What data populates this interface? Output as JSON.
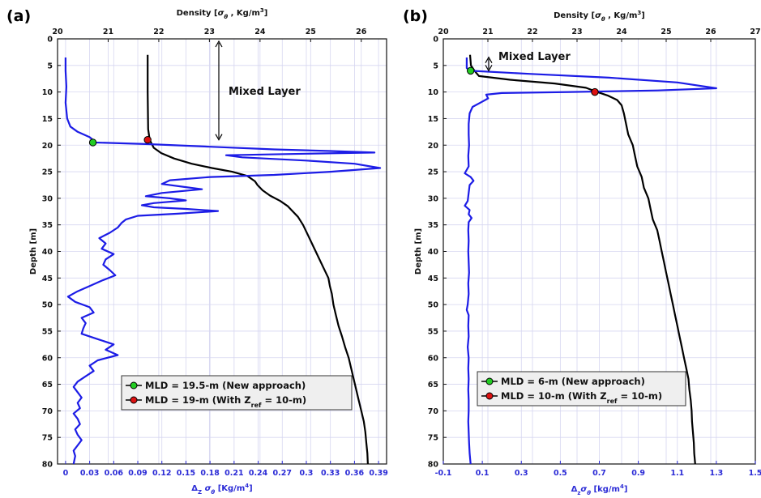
{
  "chart_data": [
    {
      "type": "line",
      "panel_label": "(a)",
      "title_top": "Density [",
      "title_top_sigma": "σ",
      "title_top_theta": "θ",
      "title_top_unit": " , Kg/m",
      "title_top_exp": "3",
      "title_top_close": "]",
      "ylabel": "Depth [m]",
      "xlabel_bottom_main": "Δ",
      "xlabel_bottom_sub": "Z",
      "xlabel_bottom_sigma": " σ",
      "xlabel_bottom_theta": "θ",
      "xlabel_bottom_unit": " [Kg/m",
      "xlabel_bottom_exp": "4",
      "xlabel_bottom_close": "]",
      "ylim": [
        0,
        80
      ],
      "yticks": [
        "0",
        "5",
        "10",
        "15",
        "20",
        "25",
        "30",
        "35",
        "40",
        "45",
        "50",
        "55",
        "60",
        "65",
        "70",
        "75",
        "80"
      ],
      "xlim_top": [
        20,
        26.5
      ],
      "xticks_top": [
        "20",
        "21",
        "22",
        "23",
        "24",
        "25",
        "26"
      ],
      "xlim_bottom": [
        -0.01,
        0.4
      ],
      "xticks_bottom": [
        "0",
        "0.03",
        "0.06",
        "0.09",
        "0.12",
        "0.15",
        "0.18",
        "0.21",
        "0.24",
        "0.27",
        "0.3",
        "0.33",
        "0.36",
        "0.39"
      ],
      "grid": true,
      "annotation": "Mixed Layer",
      "annotation_arrow_from_depth": 0,
      "annotation_arrow_to_depth": 19,
      "legend_placement": "bottom-center",
      "legend": [
        {
          "text": "MLD = 19.5-m (New approach)",
          "marker_color": "#22cc22"
        },
        {
          "text_main": "MLD = 19-m (With Z",
          "text_sub": "ref",
          "text_tail": " = 10-m)",
          "marker_color": "#dd1111"
        }
      ],
      "series": [
        {
          "axis": "top",
          "color": "#000000",
          "points": [
            [
              21.78,
              3
            ],
            [
              21.78,
              10
            ],
            [
              21.79,
              17
            ],
            [
              21.82,
              19
            ],
            [
              21.9,
              20.5
            ],
            [
              22.05,
              21.5
            ],
            [
              22.3,
              22.5
            ],
            [
              22.65,
              23.5
            ],
            [
              23.05,
              24.3
            ],
            [
              23.45,
              25
            ],
            [
              23.75,
              25.8
            ],
            [
              23.9,
              26.8
            ],
            [
              23.95,
              27.5
            ],
            [
              24.05,
              28.5
            ],
            [
              24.2,
              29.5
            ],
            [
              24.4,
              30.5
            ],
            [
              24.55,
              31.5
            ],
            [
              24.65,
              32.5
            ],
            [
              24.75,
              33.5
            ],
            [
              24.85,
              35
            ],
            [
              24.95,
              37
            ],
            [
              25.05,
              39
            ],
            [
              25.15,
              41
            ],
            [
              25.25,
              43
            ],
            [
              25.35,
              45
            ],
            [
              25.38,
              46.5
            ],
            [
              25.42,
              48
            ],
            [
              25.45,
              50
            ],
            [
              25.5,
              52
            ],
            [
              25.55,
              54
            ],
            [
              25.62,
              56
            ],
            [
              25.68,
              58
            ],
            [
              25.75,
              60
            ],
            [
              25.8,
              62
            ],
            [
              25.85,
              64
            ],
            [
              25.9,
              66
            ],
            [
              25.95,
              68
            ],
            [
              26.0,
              70
            ],
            [
              26.05,
              72
            ],
            [
              26.08,
              74
            ],
            [
              26.1,
              76
            ],
            [
              26.12,
              78
            ],
            [
              26.13,
              80
            ]
          ]
        },
        {
          "axis": "bottom",
          "color": "#1c1ce6",
          "points": [
            [
              0.0,
              3.5
            ],
            [
              0.0,
              6
            ],
            [
              0.001,
              9
            ],
            [
              0.0,
              12
            ],
            [
              0.002,
              15
            ],
            [
              0.006,
              16.5
            ],
            [
              0.015,
              17.5
            ],
            [
              0.03,
              18.5
            ],
            [
              0.038,
              19.5
            ],
            [
              0.1,
              19.8
            ],
            [
              0.18,
              20.3
            ],
            [
              0.26,
              20.8
            ],
            [
              0.33,
              21.1
            ],
            [
              0.385,
              21.4
            ],
            [
              0.3,
              21.6
            ],
            [
              0.2,
              21.9
            ],
            [
              0.22,
              22.3
            ],
            [
              0.3,
              22.9
            ],
            [
              0.36,
              23.5
            ],
            [
              0.392,
              24.3
            ],
            [
              0.33,
              25.0
            ],
            [
              0.26,
              25.6
            ],
            [
              0.18,
              26.0
            ],
            [
              0.13,
              26.6
            ],
            [
              0.12,
              27.3
            ],
            [
              0.15,
              27.9
            ],
            [
              0.17,
              28.3
            ],
            [
              0.12,
              29.0
            ],
            [
              0.1,
              29.6
            ],
            [
              0.13,
              30.0
            ],
            [
              0.15,
              30.4
            ],
            [
              0.11,
              30.9
            ],
            [
              0.095,
              31.3
            ],
            [
              0.11,
              31.7
            ],
            [
              0.15,
              32.0
            ],
            [
              0.19,
              32.4
            ],
            [
              0.14,
              32.9
            ],
            [
              0.09,
              33.3
            ],
            [
              0.075,
              34.0
            ],
            [
              0.07,
              34.6
            ],
            [
              0.065,
              35.5
            ],
            [
              0.055,
              36.5
            ],
            [
              0.042,
              37.5
            ],
            [
              0.05,
              38.5
            ],
            [
              0.045,
              39.5
            ],
            [
              0.06,
              40.5
            ],
            [
              0.05,
              41.5
            ],
            [
              0.047,
              42.5
            ],
            [
              0.055,
              43.5
            ],
            [
              0.062,
              44.5
            ],
            [
              0.045,
              45.5
            ],
            [
              0.03,
              46.5
            ],
            [
              0.015,
              47.5
            ],
            [
              0.003,
              48.5
            ],
            [
              0.012,
              49.5
            ],
            [
              0.03,
              50.5
            ],
            [
              0.035,
              51.5
            ],
            [
              0.02,
              52.5
            ],
            [
              0.025,
              53.5
            ],
            [
              0.022,
              54.5
            ],
            [
              0.02,
              55.5
            ],
            [
              0.04,
              56.5
            ],
            [
              0.06,
              57.5
            ],
            [
              0.05,
              58.5
            ],
            [
              0.065,
              59.5
            ],
            [
              0.04,
              60.5
            ],
            [
              0.03,
              61.5
            ],
            [
              0.035,
              62.5
            ],
            [
              0.025,
              63.5
            ],
            [
              0.015,
              64.5
            ],
            [
              0.01,
              65.5
            ],
            [
              0.015,
              66.5
            ],
            [
              0.02,
              67.5
            ],
            [
              0.015,
              68.5
            ],
            [
              0.018,
              69.5
            ],
            [
              0.01,
              70.5
            ],
            [
              0.015,
              71.5
            ],
            [
              0.018,
              72.5
            ],
            [
              0.012,
              73.5
            ],
            [
              0.015,
              74.5
            ],
            [
              0.02,
              75.5
            ],
            [
              0.015,
              76.5
            ],
            [
              0.01,
              77.5
            ],
            [
              0.012,
              78.5
            ],
            [
              0.01,
              80
            ]
          ]
        }
      ],
      "markers": [
        {
          "axis": "bottom",
          "x": 0.034,
          "y": 19.5,
          "color": "#22cc22"
        },
        {
          "axis": "top",
          "x": 21.78,
          "y": 19,
          "color": "#dd1111"
        }
      ]
    },
    {
      "type": "line",
      "panel_label": "(b)",
      "title_top": "Density [",
      "title_top_sigma": "σ",
      "title_top_theta": "θ",
      "title_top_unit": " , Kg/m",
      "title_top_exp": "3",
      "title_top_close": "]",
      "ylabel": "Depth [m]",
      "xlabel_bottom_main": "Δ",
      "xlabel_bottom_sub": "z",
      "xlabel_bottom_sigma": "σ",
      "xlabel_bottom_theta": "θ",
      "xlabel_bottom_unit": " [kg/m",
      "xlabel_bottom_exp": "4",
      "xlabel_bottom_close": "]",
      "ylim": [
        0,
        80
      ],
      "yticks": [
        "0",
        "5",
        "10",
        "15",
        "20",
        "25",
        "30",
        "35",
        "40",
        "45",
        "50",
        "55",
        "60",
        "65",
        "70",
        "75",
        "80"
      ],
      "xlim_top": [
        20,
        27
      ],
      "xticks_top": [
        "20",
        "21",
        "22",
        "23",
        "24",
        "25",
        "26",
        "27"
      ],
      "xlim_bottom": [
        -0.1,
        1.5
      ],
      "xticks_bottom": [
        "-0.1",
        "0.1",
        "0.3",
        "0.5",
        "0.7",
        "0.9",
        "1.1",
        "1.3",
        "1.5"
      ],
      "grid": true,
      "annotation": "Mixed Layer",
      "annotation_arrow_from_depth": 3,
      "annotation_arrow_to_depth": 6,
      "legend_placement": "bottom-center",
      "legend": [
        {
          "text": "MLD = 6-m (New approach)",
          "marker_color": "#22cc22"
        },
        {
          "text_main": "MLD = 10-m (With Z",
          "text_sub": "ref",
          "text_tail": " = 10-m)",
          "marker_color": "#dd1111"
        }
      ],
      "series": [
        {
          "axis": "top",
          "color": "#000000",
          "points": [
            [
              20.6,
              3
            ],
            [
              20.62,
              5
            ],
            [
              20.7,
              6
            ],
            [
              20.8,
              7
            ],
            [
              21.5,
              7.7
            ],
            [
              22.5,
              8.4
            ],
            [
              23.2,
              9.2
            ],
            [
              23.45,
              10
            ],
            [
              23.7,
              10.7
            ],
            [
              23.9,
              11.5
            ],
            [
              24.0,
              12.5
            ],
            [
              24.05,
              14
            ],
            [
              24.1,
              16
            ],
            [
              24.15,
              18
            ],
            [
              24.25,
              20
            ],
            [
              24.3,
              22
            ],
            [
              24.35,
              24
            ],
            [
              24.45,
              26
            ],
            [
              24.5,
              28
            ],
            [
              24.6,
              30
            ],
            [
              24.65,
              32
            ],
            [
              24.7,
              34
            ],
            [
              24.8,
              36
            ],
            [
              24.85,
              38
            ],
            [
              24.9,
              40
            ],
            [
              24.95,
              42
            ],
            [
              25.0,
              44
            ],
            [
              25.05,
              46
            ],
            [
              25.1,
              48
            ],
            [
              25.15,
              50
            ],
            [
              25.2,
              52
            ],
            [
              25.25,
              54
            ],
            [
              25.3,
              56
            ],
            [
              25.35,
              58
            ],
            [
              25.4,
              60
            ],
            [
              25.45,
              62
            ],
            [
              25.5,
              64
            ],
            [
              25.52,
              66
            ],
            [
              25.55,
              68
            ],
            [
              25.57,
              70
            ],
            [
              25.58,
              72
            ],
            [
              25.6,
              74
            ],
            [
              25.62,
              76
            ],
            [
              25.63,
              78
            ],
            [
              25.65,
              80
            ]
          ]
        },
        {
          "axis": "bottom",
          "color": "#1c1ce6",
          "points": [
            [
              0.02,
              3.5
            ],
            [
              0.02,
              5.5
            ],
            [
              0.04,
              6.0
            ],
            [
              0.35,
              6.6
            ],
            [
              0.75,
              7.3
            ],
            [
              1.1,
              8.2
            ],
            [
              1.3,
              9.3
            ],
            [
              1.0,
              9.7
            ],
            [
              0.55,
              10.0
            ],
            [
              0.2,
              10.2
            ],
            [
              0.12,
              10.5
            ],
            [
              0.13,
              11.2
            ],
            [
              0.09,
              12.0
            ],
            [
              0.05,
              12.8
            ],
            [
              0.035,
              14.0
            ],
            [
              0.03,
              16
            ],
            [
              0.03,
              18
            ],
            [
              0.032,
              20
            ],
            [
              0.028,
              22
            ],
            [
              0.03,
              24
            ],
            [
              0.01,
              25.3
            ],
            [
              0.04,
              26.0
            ],
            [
              0.055,
              26.7
            ],
            [
              0.035,
              27.5
            ],
            [
              0.03,
              29
            ],
            [
              0.025,
              30.5
            ],
            [
              0.01,
              31.4
            ],
            [
              0.035,
              32.2
            ],
            [
              0.03,
              33
            ],
            [
              0.045,
              33.7
            ],
            [
              0.03,
              34.5
            ],
            [
              0.028,
              36
            ],
            [
              0.03,
              38
            ],
            [
              0.028,
              40
            ],
            [
              0.03,
              42
            ],
            [
              0.032,
              44
            ],
            [
              0.028,
              46
            ],
            [
              0.03,
              48
            ],
            [
              0.025,
              50
            ],
            [
              0.02,
              51
            ],
            [
              0.03,
              52
            ],
            [
              0.028,
              54
            ],
            [
              0.03,
              56
            ],
            [
              0.025,
              58
            ],
            [
              0.03,
              60
            ],
            [
              0.028,
              62
            ],
            [
              0.03,
              64
            ],
            [
              0.028,
              66
            ],
            [
              0.03,
              68
            ],
            [
              0.03,
              70
            ],
            [
              0.028,
              72
            ],
            [
              0.03,
              74
            ],
            [
              0.032,
              76
            ],
            [
              0.035,
              78
            ],
            [
              0.04,
              80
            ]
          ]
        }
      ],
      "markers": [
        {
          "axis": "bottom",
          "x": 0.04,
          "y": 6,
          "color": "#22cc22"
        },
        {
          "axis": "top",
          "x": 23.4,
          "y": 10,
          "color": "#dd1111"
        }
      ]
    }
  ]
}
